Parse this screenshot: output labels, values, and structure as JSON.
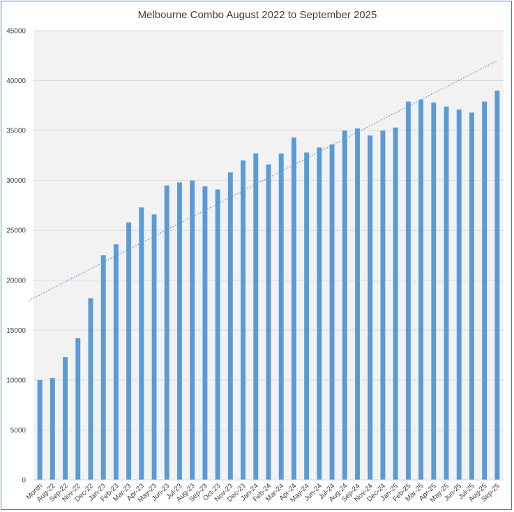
{
  "chart_data": {
    "type": "bar",
    "title": "Melbourne Combo August 2022 to September 2025",
    "xlabel": "",
    "ylabel": "",
    "ylim": [
      0,
      45000
    ],
    "yticks": [
      0,
      5000,
      10000,
      15000,
      20000,
      25000,
      30000,
      35000,
      40000,
      45000
    ],
    "grid": true,
    "legend": "none",
    "bar_color": "#5b9bd5",
    "trendline": {
      "type": "linear",
      "style": "dotted",
      "color": "#5b9bd5"
    },
    "categories": [
      "Month",
      "Aug-22",
      "Sep-22",
      "Nov-22",
      "Dec-22",
      "Jan-23",
      "Feb-23",
      "Mar-23",
      "Apr-23",
      "May-23",
      "Jun-23",
      "Jul-23",
      "Aug-23",
      "Sep-23",
      "Oct-23",
      "Nov-23",
      "Dec-23",
      "Jan-24",
      "Feb-24",
      "Mar-24",
      "Apr-24",
      "May-24",
      "Jun-24",
      "Jul-24",
      "Aug-24",
      "Sep-24",
      "Nov-24",
      "Dec-24",
      "Jan-25",
      "Feb-25",
      "Mar-25",
      "Apr-25",
      "May-25",
      "Jun-25",
      "Jul-25",
      "Aug-25",
      "Sep-25"
    ],
    "values": [
      10000,
      10200,
      12300,
      14200,
      18200,
      22500,
      23600,
      25800,
      27300,
      26600,
      29500,
      29800,
      30000,
      29400,
      29100,
      30800,
      32000,
      32700,
      31600,
      32700,
      34300,
      32800,
      33300,
      33600,
      35000,
      35200,
      34500,
      35000,
      35300,
      37900,
      38100,
      37800,
      37400,
      37100,
      36800,
      37900,
      39000
    ]
  }
}
